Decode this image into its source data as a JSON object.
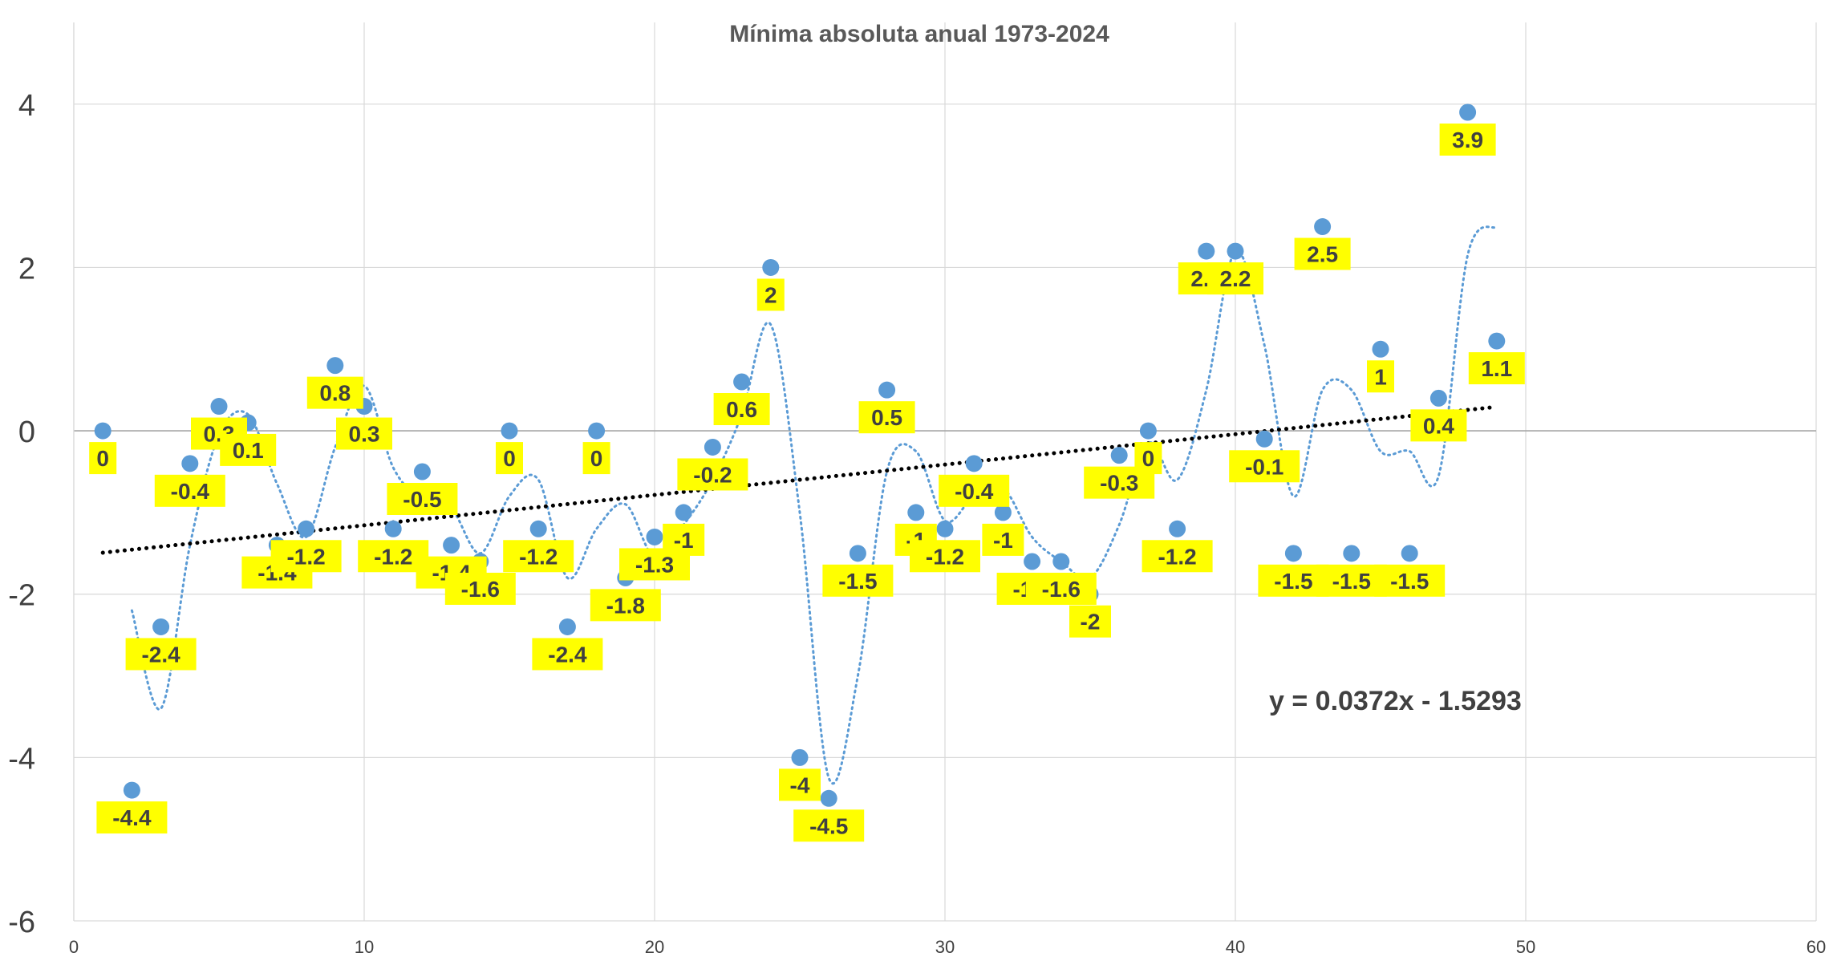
{
  "chart_data": {
    "type": "scatter",
    "title": "Mínima absoluta anual 1973-2024",
    "xlabel": "",
    "ylabel": "",
    "xlim": [
      0,
      60
    ],
    "ylim": [
      -6,
      5
    ],
    "x_ticks": [
      "0",
      "10",
      "20",
      "30",
      "40",
      "50",
      "60"
    ],
    "y_ticks": [
      "4",
      "2",
      "0",
      "-2",
      "-4",
      "-6"
    ],
    "grid": true,
    "legend": "none",
    "colors": {
      "points": "#5b9bd5",
      "moving_average": "#5b9bd5",
      "trendline": "#000000",
      "label_background": "#ffff00",
      "gridline": "#d9d9d9",
      "zero_line": "#a6a6a6"
    },
    "points": [
      {
        "x": 1,
        "y": 0,
        "label": "0"
      },
      {
        "x": 2,
        "y": -4.4,
        "label": "-4.4"
      },
      {
        "x": 3,
        "y": -2.4,
        "label": "-2.4"
      },
      {
        "x": 4,
        "y": -0.4,
        "label": "-0.4"
      },
      {
        "x": 5,
        "y": 0.3,
        "label": "0.3"
      },
      {
        "x": 6,
        "y": 0.1,
        "label": "0.1"
      },
      {
        "x": 7,
        "y": -1.4,
        "label": "-1.4"
      },
      {
        "x": 8,
        "y": -1.2,
        "label": "-1.2"
      },
      {
        "x": 9,
        "y": 0.8,
        "label": "0.8"
      },
      {
        "x": 10,
        "y": 0.3,
        "label": "0.3"
      },
      {
        "x": 11,
        "y": -1.2,
        "label": "-1.2"
      },
      {
        "x": 12,
        "y": -0.5,
        "label": "-0.5"
      },
      {
        "x": 13,
        "y": -1.4,
        "label": "-1.4"
      },
      {
        "x": 14,
        "y": -1.6,
        "label": "-1.6"
      },
      {
        "x": 15,
        "y": 0,
        "label": "0"
      },
      {
        "x": 16,
        "y": -1.2,
        "label": "-1.2"
      },
      {
        "x": 17,
        "y": -2.4,
        "label": "-2.4"
      },
      {
        "x": 18,
        "y": 0,
        "label": "0"
      },
      {
        "x": 19,
        "y": -1.8,
        "label": "-1.8"
      },
      {
        "x": 20,
        "y": -1.3,
        "label": "-1.3"
      },
      {
        "x": 21,
        "y": -1,
        "label": "-1"
      },
      {
        "x": 22,
        "y": -0.2,
        "label": "-0.2"
      },
      {
        "x": 23,
        "y": 0.6,
        "label": "0.6"
      },
      {
        "x": 24,
        "y": 2,
        "label": "2"
      },
      {
        "x": 25,
        "y": -4,
        "label": "-4"
      },
      {
        "x": 26,
        "y": -4.5,
        "label": "-4.5"
      },
      {
        "x": 27,
        "y": -1.5,
        "label": "-1.5"
      },
      {
        "x": 28,
        "y": 0.5,
        "label": "0.5"
      },
      {
        "x": 29,
        "y": -1,
        "label": "-1"
      },
      {
        "x": 30,
        "y": -1.2,
        "label": "-1.2"
      },
      {
        "x": 31,
        "y": -0.4,
        "label": "-0.4"
      },
      {
        "x": 32,
        "y": -1,
        "label": "-1"
      },
      {
        "x": 33,
        "y": -1.6,
        "label": "-1.6"
      },
      {
        "x": 34,
        "y": -1.6,
        "label": "-1.6"
      },
      {
        "x": 35,
        "y": -2,
        "label": "-2"
      },
      {
        "x": 36,
        "y": -0.3,
        "label": "-0.3"
      },
      {
        "x": 37,
        "y": 0,
        "label": "0"
      },
      {
        "x": 38,
        "y": -1.2,
        "label": "-1.2"
      },
      {
        "x": 39,
        "y": 2.2,
        "label": "2.2"
      },
      {
        "x": 40,
        "y": 2.2,
        "label": "2.2"
      },
      {
        "x": 41,
        "y": -0.1,
        "label": "-0.1"
      },
      {
        "x": 42,
        "y": -1.5,
        "label": "-1.5"
      },
      {
        "x": 43,
        "y": 2.5,
        "label": "2.5"
      },
      {
        "x": 44,
        "y": -1.5,
        "label": "-1.5"
      },
      {
        "x": 45,
        "y": 1,
        "label": "1"
      },
      {
        "x": 46,
        "y": -1.5,
        "label": "-1.5"
      },
      {
        "x": 47,
        "y": 0.4,
        "label": "0.4"
      },
      {
        "x": 48,
        "y": 3.9,
        "label": "3.9"
      },
      {
        "x": 49,
        "y": 1.1,
        "label": "1.1"
      }
    ],
    "moving_average": {
      "period": 2
    },
    "trendline": {
      "type": "linear",
      "slope": 0.0372,
      "intercept": -1.5293,
      "equation_label": "y = 0.0372x - 1.5293"
    }
  }
}
